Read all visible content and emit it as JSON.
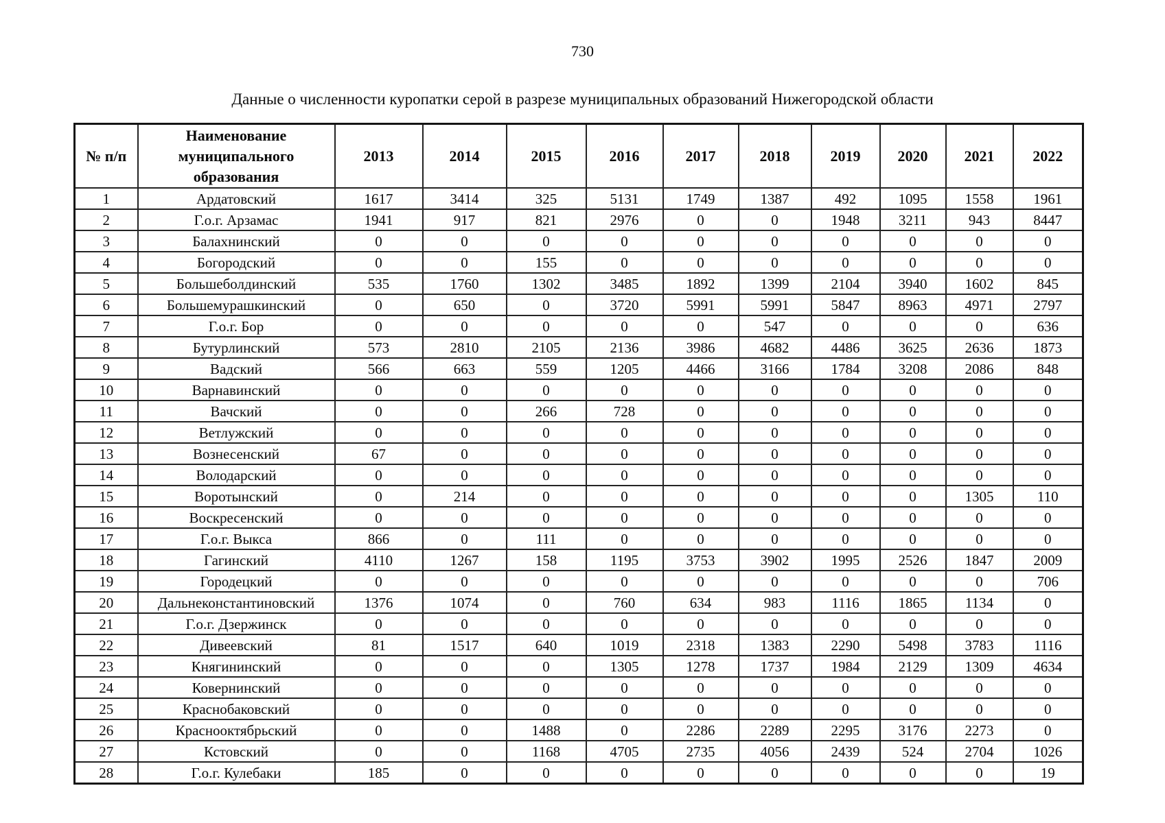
{
  "page": {
    "number": "730",
    "title": "Данные о численности куропатки серой в разрезе муниципальных образований Нижегородской области"
  },
  "table": {
    "headers": {
      "num": "№ п/п",
      "name": "Наименование муниципального образования"
    },
    "years": [
      "2013",
      "2014",
      "2015",
      "2016",
      "2017",
      "2018",
      "2019",
      "2020",
      "2021",
      "2022"
    ],
    "rows": [
      {
        "num": "1",
        "name": "Ардатовский",
        "values": [
          "1617",
          "3414",
          "325",
          "5131",
          "1749",
          "1387",
          "492",
          "1095",
          "1558",
          "1961"
        ]
      },
      {
        "num": "2",
        "name": "Г.о.г. Арзамас",
        "values": [
          "1941",
          "917",
          "821",
          "2976",
          "0",
          "0",
          "1948",
          "3211",
          "943",
          "8447"
        ]
      },
      {
        "num": "3",
        "name": "Балахнинский",
        "values": [
          "0",
          "0",
          "0",
          "0",
          "0",
          "0",
          "0",
          "0",
          "0",
          "0"
        ]
      },
      {
        "num": "4",
        "name": "Богородский",
        "values": [
          "0",
          "0",
          "155",
          "0",
          "0",
          "0",
          "0",
          "0",
          "0",
          "0"
        ]
      },
      {
        "num": "5",
        "name": "Большеболдинский",
        "values": [
          "535",
          "1760",
          "1302",
          "3485",
          "1892",
          "1399",
          "2104",
          "3940",
          "1602",
          "845"
        ]
      },
      {
        "num": "6",
        "name": "Большемурашкинский",
        "values": [
          "0",
          "650",
          "0",
          "3720",
          "5991",
          "5991",
          "5847",
          "8963",
          "4971",
          "2797"
        ]
      },
      {
        "num": "7",
        "name": "Г.о.г. Бор",
        "values": [
          "0",
          "0",
          "0",
          "0",
          "0",
          "547",
          "0",
          "0",
          "0",
          "636"
        ]
      },
      {
        "num": "8",
        "name": "Бутурлинский",
        "values": [
          "573",
          "2810",
          "2105",
          "2136",
          "3986",
          "4682",
          "4486",
          "3625",
          "2636",
          "1873"
        ]
      },
      {
        "num": "9",
        "name": "Вадский",
        "values": [
          "566",
          "663",
          "559",
          "1205",
          "4466",
          "3166",
          "1784",
          "3208",
          "2086",
          "848"
        ]
      },
      {
        "num": "10",
        "name": "Варнавинский",
        "values": [
          "0",
          "0",
          "0",
          "0",
          "0",
          "0",
          "0",
          "0",
          "0",
          "0"
        ]
      },
      {
        "num": "11",
        "name": "Вачский",
        "values": [
          "0",
          "0",
          "266",
          "728",
          "0",
          "0",
          "0",
          "0",
          "0",
          "0"
        ]
      },
      {
        "num": "12",
        "name": "Ветлужский",
        "values": [
          "0",
          "0",
          "0",
          "0",
          "0",
          "0",
          "0",
          "0",
          "0",
          "0"
        ]
      },
      {
        "num": "13",
        "name": "Вознесенский",
        "values": [
          "67",
          "0",
          "0",
          "0",
          "0",
          "0",
          "0",
          "0",
          "0",
          "0"
        ]
      },
      {
        "num": "14",
        "name": "Володарский",
        "values": [
          "0",
          "0",
          "0",
          "0",
          "0",
          "0",
          "0",
          "0",
          "0",
          "0"
        ]
      },
      {
        "num": "15",
        "name": "Воротынский",
        "values": [
          "0",
          "214",
          "0",
          "0",
          "0",
          "0",
          "0",
          "0",
          "1305",
          "110"
        ]
      },
      {
        "num": "16",
        "name": "Воскресенский",
        "values": [
          "0",
          "0",
          "0",
          "0",
          "0",
          "0",
          "0",
          "0",
          "0",
          "0"
        ]
      },
      {
        "num": "17",
        "name": "Г.о.г. Выкса",
        "values": [
          "866",
          "0",
          "111",
          "0",
          "0",
          "0",
          "0",
          "0",
          "0",
          "0"
        ]
      },
      {
        "num": "18",
        "name": "Гагинский",
        "values": [
          "4110",
          "1267",
          "158",
          "1195",
          "3753",
          "3902",
          "1995",
          "2526",
          "1847",
          "2009"
        ]
      },
      {
        "num": "19",
        "name": "Городецкий",
        "values": [
          "0",
          "0",
          "0",
          "0",
          "0",
          "0",
          "0",
          "0",
          "0",
          "706"
        ]
      },
      {
        "num": "20",
        "name": "Дальнеконстантиновский",
        "values": [
          "1376",
          "1074",
          "0",
          "760",
          "634",
          "983",
          "1116",
          "1865",
          "1134",
          "0"
        ]
      },
      {
        "num": "21",
        "name": "Г.о.г. Дзержинск",
        "values": [
          "0",
          "0",
          "0",
          "0",
          "0",
          "0",
          "0",
          "0",
          "0",
          "0"
        ]
      },
      {
        "num": "22",
        "name": "Дивеевский",
        "values": [
          "81",
          "1517",
          "640",
          "1019",
          "2318",
          "1383",
          "2290",
          "5498",
          "3783",
          "1116"
        ]
      },
      {
        "num": "23",
        "name": "Княгининский",
        "values": [
          "0",
          "0",
          "0",
          "1305",
          "1278",
          "1737",
          "1984",
          "2129",
          "1309",
          "4634"
        ]
      },
      {
        "num": "24",
        "name": "Ковернинский",
        "values": [
          "0",
          "0",
          "0",
          "0",
          "0",
          "0",
          "0",
          "0",
          "0",
          "0"
        ]
      },
      {
        "num": "25",
        "name": "Краснобаковский",
        "values": [
          "0",
          "0",
          "0",
          "0",
          "0",
          "0",
          "0",
          "0",
          "0",
          "0"
        ]
      },
      {
        "num": "26",
        "name": "Краснооктябрьский",
        "values": [
          "0",
          "0",
          "1488",
          "0",
          "2286",
          "2289",
          "2295",
          "3176",
          "2273",
          "0"
        ]
      },
      {
        "num": "27",
        "name": "Кстовский",
        "values": [
          "0",
          "0",
          "1168",
          "4705",
          "2735",
          "4056",
          "2439",
          "524",
          "2704",
          "1026"
        ]
      },
      {
        "num": "28",
        "name": "Г.о.г. Кулебаки",
        "values": [
          "185",
          "0",
          "0",
          "0",
          "0",
          "0",
          "0",
          "0",
          "0",
          "19"
        ]
      }
    ]
  }
}
